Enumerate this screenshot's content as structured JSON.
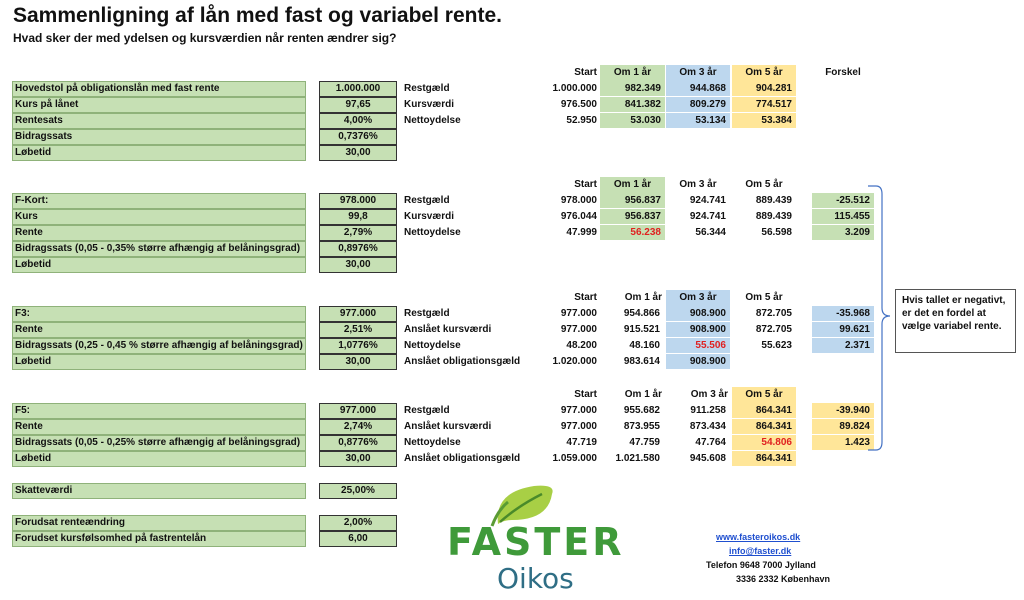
{
  "title": "Sammenligning af lån med fast og variabel rente.",
  "subtitle": "Hvad sker der med ydelsen og kursværdien når renten ændrer sig?",
  "columns": {
    "start": "Start",
    "y1": "Om 1 år",
    "y3": "Om 3 år",
    "y5": "Om 5 år",
    "diff": "Forskel"
  },
  "fixed": {
    "inputs": [
      {
        "label": "Hovedstol på obligationslån med fast rente",
        "value": "1.000.000"
      },
      {
        "label": "Kurs på lånet",
        "value": "97,65"
      },
      {
        "label": "Rentesats",
        "value": "4,00%"
      },
      {
        "label": "Bidragssats",
        "value": "0,7376%"
      },
      {
        "label": "Løbetid",
        "value": "30,00"
      }
    ],
    "rows": [
      {
        "label": "Restgæld",
        "start": "1.000.000",
        "y1": "982.349",
        "y3": "944.868",
        "y5": "904.281"
      },
      {
        "label": "Kursværdi",
        "start": "976.500",
        "y1": "841.382",
        "y3": "809.279",
        "y5": "774.517"
      },
      {
        "label": "Nettoydelse",
        "start": "52.950",
        "y1": "53.030",
        "y3": "53.134",
        "y5": "53.384"
      }
    ]
  },
  "fkort": {
    "inputs": [
      {
        "label": "F-Kort:",
        "value": "978.000"
      },
      {
        "label": "Kurs",
        "value": "99,8"
      },
      {
        "label": "Rente",
        "value": "2,79%"
      },
      {
        "label": "Bidragssats (0,05 - 0,35% større afhængig af belåningsgrad)",
        "value": "0,8976%"
      },
      {
        "label": "Løbetid",
        "value": "30,00"
      }
    ],
    "rows": [
      {
        "label": "Restgæld",
        "start": "978.000",
        "y1": "956.837",
        "y3": "924.741",
        "y5": "889.439",
        "diff": "-25.512"
      },
      {
        "label": "Kursværdi",
        "start": "976.044",
        "y1": "956.837",
        "y3": "924.741",
        "y5": "889.439",
        "diff": "115.455"
      },
      {
        "label": "Nettoydelse",
        "start": "47.999",
        "y1": "56.238",
        "y3": "56.344",
        "y5": "56.598",
        "diff": "3.209"
      }
    ]
  },
  "f3": {
    "inputs": [
      {
        "label": "F3:",
        "value": "977.000"
      },
      {
        "label": "Rente",
        "value": "2,51%"
      },
      {
        "label": "Bidragssats (0,25 - 0,45 % større afhængig af belåningsgrad)",
        "value": "1,0776%"
      },
      {
        "label": "Løbetid",
        "value": "30,00"
      }
    ],
    "rows": [
      {
        "label": "Restgæld",
        "start": "977.000",
        "y1": "954.866",
        "y3": "908.900",
        "y5": "872.705",
        "diff": "-35.968"
      },
      {
        "label": "Anslået kursværdi",
        "start": "977.000",
        "y1": "915.521",
        "y3": "908.900",
        "y5": "872.705",
        "diff": "99.621"
      },
      {
        "label": "Nettoydelse",
        "start": "48.200",
        "y1": "48.160",
        "y3": "55.506",
        "y5": "55.623",
        "diff": "2.371"
      },
      {
        "label": "Anslået obligationsgæld",
        "start": "1.020.000",
        "y1": "983.614",
        "y3": "908.900",
        "y5": "",
        "diff": ""
      }
    ]
  },
  "f5": {
    "inputs": [
      {
        "label": "F5:",
        "value": "977.000"
      },
      {
        "label": "Rente",
        "value": "2,74%"
      },
      {
        "label": "Bidragssats (0,05 - 0,25% større afhængig af belåningsgrad)",
        "value": "0,8776%"
      },
      {
        "label": "Løbetid",
        "value": "30,00"
      }
    ],
    "rows": [
      {
        "label": "Restgæld",
        "start": "977.000",
        "y1": "955.682",
        "y3": "911.258",
        "y5": "864.341",
        "diff": "-39.940"
      },
      {
        "label": "Anslået kursværdi",
        "start": "977.000",
        "y1": "873.955",
        "y3": "873.434",
        "y5": "864.341",
        "diff": "89.824"
      },
      {
        "label": "Nettoydelse",
        "start": "47.719",
        "y1": "47.759",
        "y3": "47.764",
        "y5": "54.806",
        "diff": "1.423"
      },
      {
        "label": "Anslået obligationsgæld",
        "start": "1.059.000",
        "y1": "1.021.580",
        "y3": "945.608",
        "y5": "864.341",
        "diff": ""
      }
    ]
  },
  "tax": {
    "label": "Skatteværdi",
    "value": "25,00%"
  },
  "assumptions": [
    {
      "label": "Forudsat renteændring",
      "value": "2,00%"
    },
    {
      "label": "Forudset kursfølsomhed på fastrentelån",
      "value": "6,00"
    }
  ],
  "note": "Hvis tallet er negativt, er det en fordel at vælge variabel rente.",
  "logo": {
    "line1": "FASTER",
    "line2": "Oikos"
  },
  "contact": {
    "web": "www.fasteroikos.dk",
    "email": "info@faster.dk",
    "phone1": "Telefon 9648 7000 Jylland",
    "phone2": "3336 2332 København"
  },
  "colors": {
    "green": "#c6e0b4",
    "blue": "#bdd7ee",
    "yellow": "#ffe699",
    "red": "#e02020",
    "brand": "#3f9a3a"
  }
}
